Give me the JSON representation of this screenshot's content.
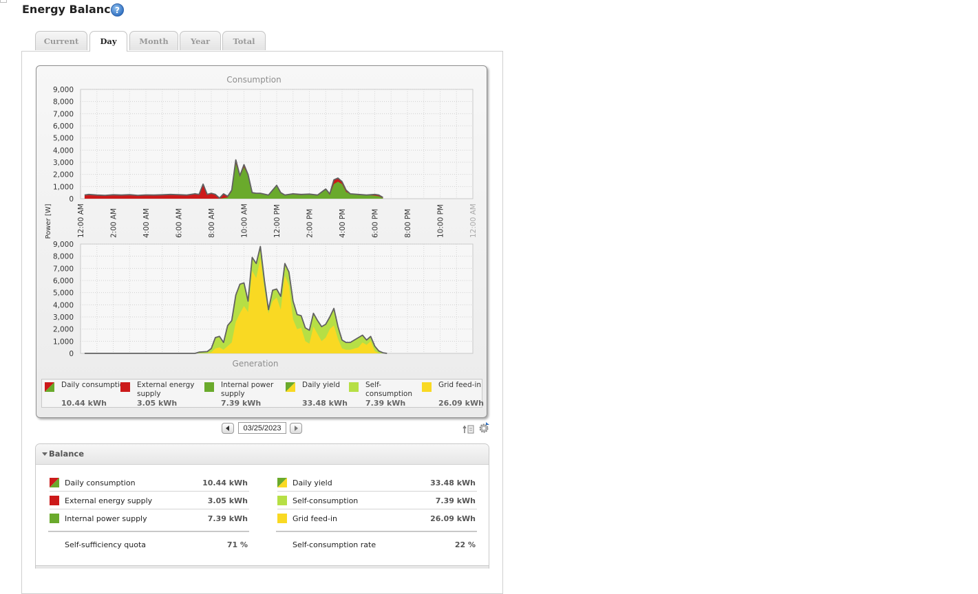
{
  "page": {
    "title": "Energy Balance",
    "help_icon": "question-circle-icon"
  },
  "tabs": [
    {
      "label": "Current",
      "active": false
    },
    {
      "label": "Day",
      "active": true
    },
    {
      "label": "Month",
      "active": false
    },
    {
      "label": "Year",
      "active": false
    },
    {
      "label": "Total",
      "active": false
    }
  ],
  "chart_data": [
    {
      "type": "area",
      "title": "Consumption",
      "ylabel": "Power [W]",
      "ylim": [
        0,
        9000
      ],
      "yticks": [
        0,
        1000,
        2000,
        3000,
        4000,
        5000,
        6000,
        7000,
        8000,
        9000
      ],
      "ytick_labels": [
        "0",
        "1,000",
        "2,000",
        "3,000",
        "4,000",
        "5,000",
        "6,000",
        "7,000",
        "8,000",
        "9,000"
      ],
      "xlim": [
        0,
        24
      ],
      "xtick_labels": [
        "12:00 AM",
        "2:00 AM",
        "4:00 AM",
        "6:00 AM",
        "8:00 AM",
        "10:00 AM",
        "12:00 PM",
        "2:00 PM",
        "4:00 PM",
        "6:00 PM",
        "8:00 PM",
        "10:00 PM",
        "12:00 AM"
      ],
      "grid": true,
      "x": [
        0.25,
        0.5,
        1,
        1.5,
        2,
        2.5,
        3,
        3.5,
        4,
        4.5,
        5,
        5.5,
        6,
        6.5,
        7,
        7.25,
        7.5,
        7.75,
        8,
        8.25,
        8.5,
        8.75,
        9,
        9.25,
        9.5,
        9.75,
        10,
        10.25,
        10.5,
        10.75,
        11,
        11.5,
        12,
        12.25,
        12.5,
        13,
        13.5,
        14,
        14.5,
        15,
        15.25,
        15.5,
        15.75,
        16,
        16.25,
        16.5,
        17,
        17.5,
        18,
        18.25,
        18.5
      ],
      "series": [
        {
          "name": "Daily consumption",
          "color": "#616161",
          "values": [
            300,
            350,
            300,
            280,
            320,
            300,
            330,
            280,
            310,
            300,
            320,
            350,
            330,
            300,
            400,
            350,
            1200,
            350,
            450,
            350,
            50,
            400,
            200,
            700,
            3200,
            1900,
            2800,
            2000,
            500,
            450,
            450,
            300,
            1100,
            500,
            300,
            400,
            350,
            380,
            300,
            800,
            400,
            1550,
            1700,
            1400,
            700,
            400,
            350,
            300,
            350,
            300,
            100
          ]
        },
        {
          "name": "Internal power supply",
          "color": "#6aaa2c",
          "values": [
            0,
            0,
            0,
            0,
            0,
            0,
            0,
            0,
            0,
            0,
            0,
            0,
            0,
            0,
            0,
            0,
            0,
            0,
            0,
            0,
            0,
            50,
            100,
            600,
            2900,
            1800,
            2600,
            1900,
            450,
            450,
            400,
            300,
            1050,
            450,
            300,
            350,
            300,
            350,
            250,
            750,
            300,
            1200,
            1400,
            1200,
            550,
            400,
            300,
            300,
            250,
            200,
            50
          ]
        }
      ]
    },
    {
      "type": "area",
      "title": "Generation",
      "ylabel": "Power [W]",
      "ylim": [
        0,
        9000
      ],
      "yticks": [
        0,
        1000,
        2000,
        3000,
        4000,
        5000,
        6000,
        7000,
        8000,
        9000
      ],
      "ytick_labels": [
        "0",
        "1,000",
        "2,000",
        "3,000",
        "4,000",
        "5,000",
        "6,000",
        "7,000",
        "8,000",
        "9,000"
      ],
      "xlim": [
        0,
        24
      ],
      "grid": true,
      "x": [
        0.25,
        7,
        7.25,
        7.75,
        8,
        8.25,
        8.5,
        8.75,
        9,
        9.25,
        9.5,
        9.75,
        10,
        10.25,
        10.5,
        10.75,
        11,
        11.25,
        11.5,
        11.75,
        12,
        12.25,
        12.5,
        12.75,
        13,
        13.25,
        13.5,
        13.75,
        14,
        14.25,
        14.5,
        14.75,
        15,
        15.25,
        15.5,
        15.75,
        16,
        16.25,
        16.5,
        17,
        17.25,
        17.5,
        17.75,
        18,
        18.25,
        18.5,
        18.75
      ],
      "series": [
        {
          "name": "Daily yield",
          "color": "#616161",
          "values": [
            0,
            0,
            100,
            150,
            400,
            1300,
            1400,
            900,
            2300,
            2700,
            4800,
            5700,
            5800,
            4300,
            7900,
            7400,
            8800,
            6000,
            3600,
            5200,
            5300,
            4700,
            7400,
            6700,
            4300,
            3200,
            3100,
            2100,
            1900,
            3300,
            2700,
            2200,
            2400,
            3000,
            3700,
            2200,
            1100,
            900,
            900,
            1300,
            1500,
            1100,
            1400,
            600,
            200,
            50,
            0
          ]
        },
        {
          "name": "Grid feed-in",
          "color": "#f9d923",
          "values": [
            0,
            0,
            0,
            0,
            100,
            400,
            500,
            300,
            600,
            900,
            2600,
            3300,
            3900,
            3400,
            6800,
            6200,
            7800,
            5300,
            3300,
            4300,
            4600,
            3600,
            6400,
            5600,
            2800,
            2000,
            2100,
            1000,
            800,
            2200,
            1600,
            1000,
            1300,
            2000,
            2300,
            1200,
            400,
            300,
            300,
            500,
            900,
            700,
            1000,
            200,
            0,
            0,
            0
          ]
        }
      ]
    }
  ],
  "legend": [
    {
      "label": "Daily consumption",
      "value": "10.44 kWh",
      "swatch": "red-green-diagonal"
    },
    {
      "label": "External energy supply",
      "value": "3.05 kWh",
      "swatch": "#cc1a1a"
    },
    {
      "label": "Internal power supply",
      "value": "7.39 kWh",
      "swatch": "#6aaa2c"
    },
    {
      "label": "Daily yield",
      "value": "33.48 kWh",
      "swatch": "green-yellow-diagonal"
    },
    {
      "label": "Self-consumption",
      "value": "7.39 kWh",
      "swatch": "#b6df45"
    },
    {
      "label": "Grid feed-in",
      "value": "26.09 kWh",
      "swatch": "#f9d923"
    }
  ],
  "date_nav": {
    "date": "03/25/2023",
    "prev_icon": "arrow-left-icon",
    "next_icon": "arrow-right-icon"
  },
  "tools": {
    "export_icon": "export-icon",
    "settings_icon": "settings-gear-icon"
  },
  "balance": {
    "title": "Balance",
    "left": [
      {
        "label": "Daily consumption",
        "value": "10.44 kWh"
      },
      {
        "label": "External energy supply",
        "value": "3.05 kWh"
      },
      {
        "label": "Internal power supply",
        "value": "7.39 kWh"
      }
    ],
    "right": [
      {
        "label": "Daily yield",
        "value": "33.48 kWh"
      },
      {
        "label": "Self-consumption",
        "value": "7.39 kWh"
      },
      {
        "label": "Grid feed-in",
        "value": "26.09 kWh"
      }
    ],
    "quota_left": {
      "label": "Self-sufficiency quota",
      "value": "71 %"
    },
    "quota_right": {
      "label": "Self-consumption rate",
      "value": "22 %"
    }
  },
  "colors": {
    "external": "#cc1a1a",
    "internal": "#6aaa2c",
    "self_consumption": "#b6df45",
    "grid_feed_in": "#f9d923",
    "outline": "#616161"
  }
}
